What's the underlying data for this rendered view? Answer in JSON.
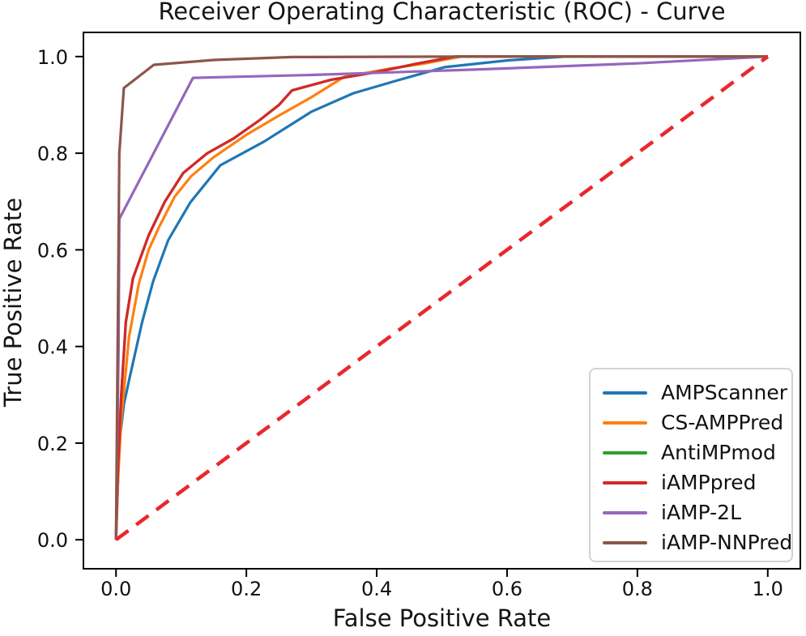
{
  "chart_data": {
    "type": "line",
    "title": "Receiver Operating Characteristic (ROC) - Curve",
    "xlabel": "False Positive Rate",
    "ylabel": "True Positive Rate",
    "xlim": [
      -0.05,
      1.05
    ],
    "ylim": [
      -0.06,
      1.05
    ],
    "x_ticks": [
      0.0,
      0.2,
      0.4,
      0.6,
      0.8,
      1.0
    ],
    "y_ticks": [
      0.0,
      0.2,
      0.4,
      0.6,
      0.8,
      1.0
    ],
    "x_tick_labels": [
      "0.0",
      "0.2",
      "0.4",
      "0.6",
      "0.8",
      "1.0"
    ],
    "y_tick_labels": [
      "0.0",
      "0.2",
      "0.4",
      "0.6",
      "0.8",
      "1.0"
    ],
    "grid": false,
    "legend_position": "lower right",
    "series": [
      {
        "name": "AMPScanner",
        "color": "#1f77b4",
        "points": [
          [
            0,
            0
          ],
          [
            0.003,
            0.12
          ],
          [
            0.005,
            0.2
          ],
          [
            0.012,
            0.28
          ],
          [
            0.02,
            0.33
          ],
          [
            0.04,
            0.45
          ],
          [
            0.057,
            0.535
          ],
          [
            0.08,
            0.62
          ],
          [
            0.114,
            0.698
          ],
          [
            0.16,
            0.775
          ],
          [
            0.227,
            0.824
          ],
          [
            0.3,
            0.886
          ],
          [
            0.364,
            0.924
          ],
          [
            0.43,
            0.95
          ],
          [
            0.504,
            0.978
          ],
          [
            0.6,
            0.992
          ],
          [
            0.69,
            1.0
          ],
          [
            1,
            1
          ]
        ]
      },
      {
        "name": "CS-AMPPred",
        "color": "#ff7f0e",
        "points": [
          [
            0,
            0
          ],
          [
            0.003,
            0.12
          ],
          [
            0.008,
            0.25
          ],
          [
            0.02,
            0.42
          ],
          [
            0.035,
            0.53
          ],
          [
            0.05,
            0.6
          ],
          [
            0.066,
            0.647
          ],
          [
            0.09,
            0.71
          ],
          [
            0.115,
            0.752
          ],
          [
            0.15,
            0.792
          ],
          [
            0.2,
            0.838
          ],
          [
            0.25,
            0.878
          ],
          [
            0.3,
            0.916
          ],
          [
            0.35,
            0.958
          ],
          [
            0.42,
            0.975
          ],
          [
            0.47,
            0.985
          ],
          [
            0.53,
            1.0
          ],
          [
            1,
            1
          ]
        ]
      },
      {
        "name": "AntiMPmod",
        "color": "#2ca02c",
        "points": [
          [
            0,
            0
          ],
          [
            0.003,
            0.15
          ],
          [
            0.008,
            0.3
          ],
          [
            0.015,
            0.45
          ],
          [
            0.026,
            0.541
          ],
          [
            0.05,
            0.63
          ],
          [
            0.075,
            0.7
          ],
          [
            0.103,
            0.759
          ],
          [
            0.14,
            0.8
          ],
          [
            0.18,
            0.83
          ],
          [
            0.22,
            0.868
          ],
          [
            0.25,
            0.9
          ],
          [
            0.27,
            0.93
          ],
          [
            0.33,
            0.952
          ],
          [
            0.4,
            0.968
          ],
          [
            0.46,
            0.985
          ],
          [
            0.52,
            1.0
          ],
          [
            1,
            1
          ]
        ]
      },
      {
        "name": "iAMPpred",
        "color": "#d62728",
        "points": [
          [
            0,
            0
          ],
          [
            0.003,
            0.15
          ],
          [
            0.008,
            0.3
          ],
          [
            0.015,
            0.45
          ],
          [
            0.026,
            0.541
          ],
          [
            0.05,
            0.63
          ],
          [
            0.075,
            0.7
          ],
          [
            0.103,
            0.759
          ],
          [
            0.14,
            0.8
          ],
          [
            0.18,
            0.83
          ],
          [
            0.22,
            0.868
          ],
          [
            0.25,
            0.9
          ],
          [
            0.27,
            0.93
          ],
          [
            0.33,
            0.952
          ],
          [
            0.4,
            0.968
          ],
          [
            0.46,
            0.985
          ],
          [
            0.52,
            1.0
          ],
          [
            1,
            1
          ]
        ]
      },
      {
        "name": "iAMP-2L",
        "color": "#9467bd",
        "points": [
          [
            0,
            0
          ],
          [
            0.004,
            0.4
          ],
          [
            0.005,
            0.664
          ],
          [
            0.118,
            0.956
          ],
          [
            0.3,
            0.962
          ],
          [
            0.55,
            0.973
          ],
          [
            0.8,
            0.986
          ],
          [
            1,
            1
          ]
        ]
      },
      {
        "name": "iAMP-NNPred",
        "color": "#8c564b",
        "points": [
          [
            0,
            0
          ],
          [
            0.005,
            0.8
          ],
          [
            0.012,
            0.935
          ],
          [
            0.058,
            0.983
          ],
          [
            0.15,
            0.993
          ],
          [
            0.27,
            0.999
          ],
          [
            0.55,
            1.0
          ],
          [
            1,
            1
          ]
        ]
      }
    ],
    "reference_line": {
      "name": "chance-diagonal",
      "color": "#e9282d",
      "style": "dashed",
      "points": [
        [
          0,
          0
        ],
        [
          1,
          1
        ]
      ]
    }
  },
  "style": {
    "frame_color": "#000000",
    "tick_label_color": "#111111"
  }
}
